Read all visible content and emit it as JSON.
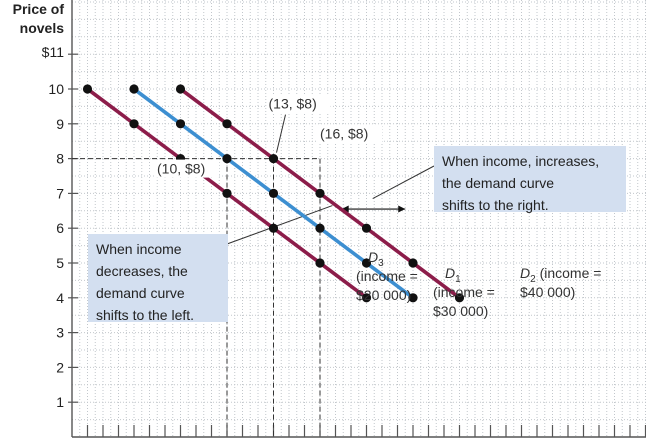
{
  "chart_data": {
    "type": "line",
    "ylabel": "Price of novels",
    "xlabel": "",
    "ylim": [
      0,
      11.5
    ],
    "xlim": [
      0,
      31
    ],
    "y_ticks": [
      1,
      2,
      3,
      4,
      5,
      6,
      7,
      8,
      9,
      10
    ],
    "y_top_tick": "$11",
    "grid": true,
    "series": [
      {
        "name": "D3",
        "label_lines": [
          "D3",
          "(income =",
          "$20 000)"
        ],
        "color": "#8c1d4a",
        "x": [
          1,
          4,
          7,
          10,
          13,
          16,
          19
        ],
        "y": [
          10,
          9,
          8,
          7,
          6,
          5,
          4
        ]
      },
      {
        "name": "D1",
        "label_lines": [
          "D1",
          "(income =",
          "$30 000)"
        ],
        "color": "#3d8fd1",
        "x": [
          4,
          7,
          10,
          13,
          16,
          19,
          22
        ],
        "y": [
          10,
          9,
          8,
          7,
          6,
          5,
          4
        ]
      },
      {
        "name": "D2",
        "label_lines": [
          "D2 (income =",
          "$40 000)"
        ],
        "color": "#8c1d4a",
        "x": [
          7,
          10,
          13,
          16,
          19,
          22,
          25
        ],
        "y": [
          10,
          9,
          8,
          7,
          6,
          5,
          4
        ]
      }
    ],
    "annotations": [
      {
        "text": "(10, $8)",
        "x": 10,
        "y": 8
      },
      {
        "text": "(13, $8)",
        "x": 13,
        "y": 8
      },
      {
        "text": "(16, $8)",
        "x": 16,
        "y": 8
      }
    ],
    "callouts": {
      "left": [
        "When income",
        "decreases, the",
        "demand curve",
        "shifts to the left."
      ],
      "right": [
        "When income, increases,",
        "the demand curve",
        "shifts to the right."
      ]
    },
    "box_color": "#d3dff0"
  }
}
